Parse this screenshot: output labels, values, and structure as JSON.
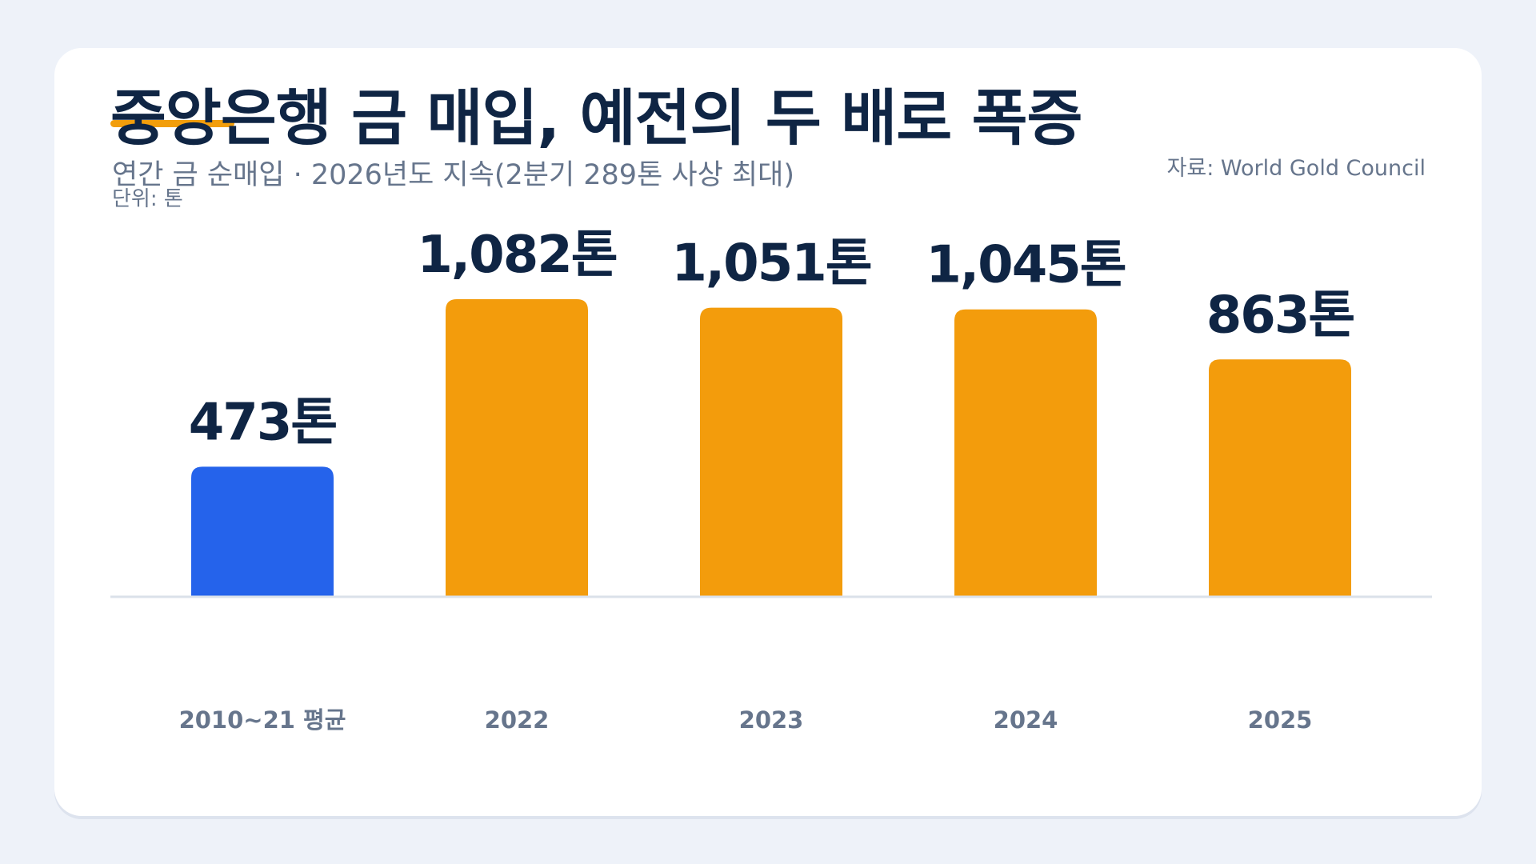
{
  "header": {
    "title": "중앙은행 금 매입, 예전의 두 배로 폭증",
    "subtitle": "연간 금 순매입 · 2026년도 지속(2분기 289톤 사상 최대)",
    "unit": "단위: 톤",
    "source": "자료: World Gold Council"
  },
  "colors": {
    "baseline_bar": "#2563eb",
    "highlight_bar": "#f39c0c",
    "accent": "#f29e0c",
    "title": "#0f2544",
    "muted": "#66758c",
    "axis": "#dbe1ea"
  },
  "chart_data": {
    "type": "bar",
    "title": "중앙은행 금 매입, 예전의 두 배로 폭증",
    "subtitle": "연간 금 순매입 · 2026년도 지속(2분기 289톤 사상 최대)",
    "xlabel": "",
    "ylabel": "단위: 톤",
    "ylim": [
      0,
      1200
    ],
    "grid": false,
    "categories": [
      "2010~21 평균",
      "2022",
      "2023",
      "2024",
      "2025"
    ],
    "values": [
      473,
      1082,
      1051,
      1045,
      863
    ],
    "data_labels": [
      "473톤",
      "1,082톤",
      "1,051톤",
      "1,045톤",
      "863톤"
    ],
    "bar_colors": [
      "#2563eb",
      "#f39c0c",
      "#f39c0c",
      "#f39c0c",
      "#f39c0c"
    ]
  }
}
